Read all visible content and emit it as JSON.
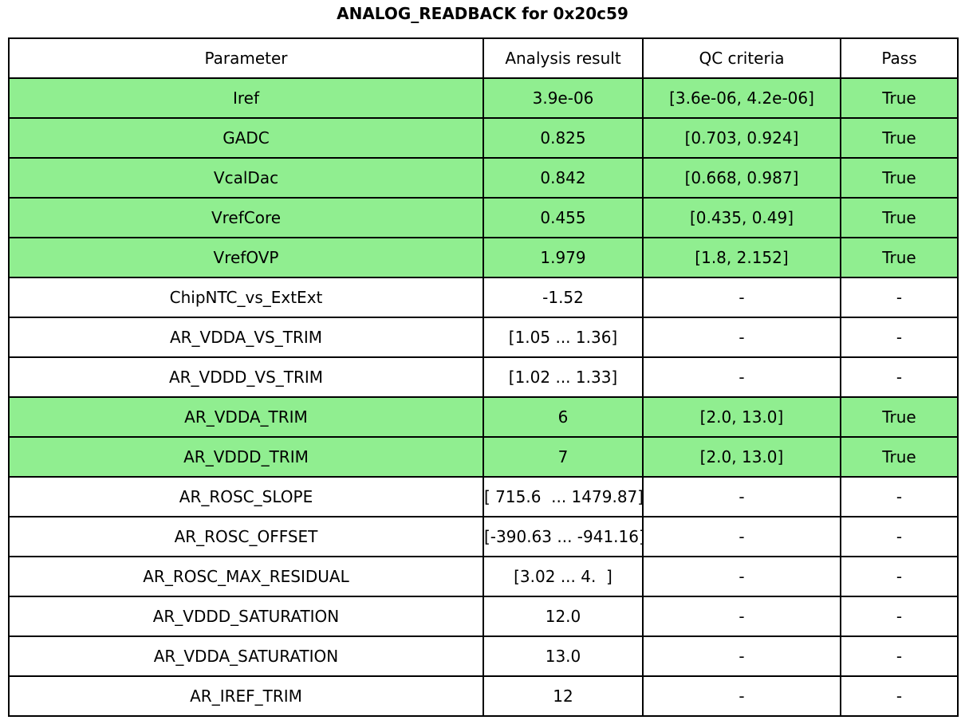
{
  "title": "ANALOG_READBACK for 0x20c59",
  "colors": {
    "pass_green": "#90ee90",
    "border": "#000000",
    "background": "#ffffff"
  },
  "chart_data": {
    "type": "table",
    "title": "ANALOG_READBACK for 0x20c59",
    "columns": [
      "Parameter",
      "Analysis result",
      "QC criteria",
      "Pass"
    ],
    "legend_position": "none",
    "grid": true,
    "highlight_color": "#90ee90",
    "rows": [
      {
        "parameter": "Iref",
        "result": "3.9e-06",
        "qc": "[3.6e-06, 4.2e-06]",
        "pass": "True",
        "highlight": true
      },
      {
        "parameter": "GADC",
        "result": "0.825",
        "qc": "[0.703, 0.924]",
        "pass": "True",
        "highlight": true
      },
      {
        "parameter": "VcalDac",
        "result": "0.842",
        "qc": "[0.668, 0.987]",
        "pass": "True",
        "highlight": true
      },
      {
        "parameter": "VrefCore",
        "result": "0.455",
        "qc": "[0.435, 0.49]",
        "pass": "True",
        "highlight": true
      },
      {
        "parameter": "VrefOVP",
        "result": "1.979",
        "qc": "[1.8, 2.152]",
        "pass": "True",
        "highlight": true
      },
      {
        "parameter": "ChipNTC_vs_ExtExt",
        "result": "-1.52",
        "qc": "-",
        "pass": "-",
        "highlight": false
      },
      {
        "parameter": "AR_VDDA_VS_TRIM",
        "result": "[1.05 ... 1.36]",
        "qc": "-",
        "pass": "-",
        "highlight": false
      },
      {
        "parameter": "AR_VDDD_VS_TRIM",
        "result": "[1.02 ... 1.33]",
        "qc": "-",
        "pass": "-",
        "highlight": false
      },
      {
        "parameter": "AR_VDDA_TRIM",
        "result": "6",
        "qc": "[2.0, 13.0]",
        "pass": "True",
        "highlight": true
      },
      {
        "parameter": "AR_VDDD_TRIM",
        "result": "7",
        "qc": "[2.0, 13.0]",
        "pass": "True",
        "highlight": true
      },
      {
        "parameter": "AR_ROSC_SLOPE",
        "result": "[ 715.6  ... 1479.87]",
        "qc": "-",
        "pass": "-",
        "highlight": false
      },
      {
        "parameter": "AR_ROSC_OFFSET",
        "result": "[-390.63 ... -941.16]",
        "qc": "-",
        "pass": "-",
        "highlight": false
      },
      {
        "parameter": "AR_ROSC_MAX_RESIDUAL",
        "result": "[3.02 ... 4.  ]",
        "qc": "-",
        "pass": "-",
        "highlight": false
      },
      {
        "parameter": "AR_VDDD_SATURATION",
        "result": "12.0",
        "qc": "-",
        "pass": "-",
        "highlight": false
      },
      {
        "parameter": "AR_VDDA_SATURATION",
        "result": "13.0",
        "qc": "-",
        "pass": "-",
        "highlight": false
      },
      {
        "parameter": "AR_IREF_TRIM",
        "result": "12",
        "qc": "-",
        "pass": "-",
        "highlight": false
      }
    ]
  }
}
